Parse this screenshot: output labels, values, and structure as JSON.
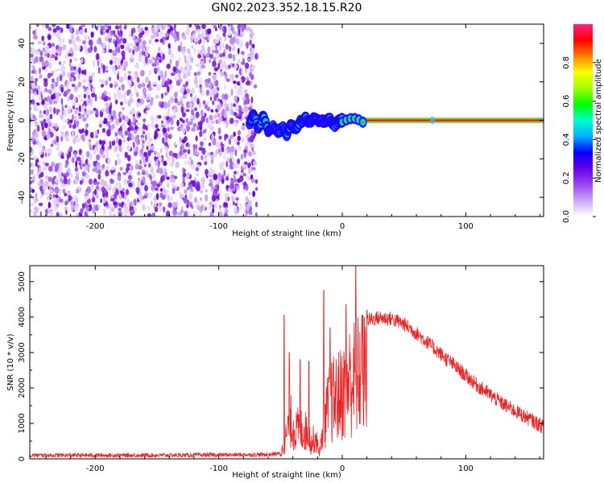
{
  "title": "GN02.2023.352.18.15.R20",
  "chart_data": [
    {
      "type": "heatmap",
      "xlabel": "Height of straight line (km)",
      "ylabel": "Frequency (Hz)",
      "xlim": [
        -253,
        163
      ],
      "ylim": [
        -50,
        50
      ],
      "x_ticks": [
        -200,
        -100,
        0,
        100
      ],
      "y_ticks": [
        -40,
        -20,
        0,
        20,
        40
      ],
      "noise_region_x": [
        -253,
        -72
      ],
      "signal_track": {
        "x": [
          -75,
          -72,
          -68,
          -64,
          -60,
          -56,
          -52,
          -48,
          -45,
          -42,
          -38,
          -34,
          -30,
          -26,
          -22,
          -18,
          -14,
          -10,
          -7,
          -4,
          -2,
          0,
          20,
          60,
          100,
          140,
          163
        ],
        "y": [
          -2,
          3,
          -4,
          2,
          -5,
          -3,
          -6,
          -4,
          -7,
          -3,
          -4,
          -1,
          1,
          -1,
          1,
          -1,
          0,
          1,
          -3,
          -1,
          0,
          0,
          0,
          0,
          0,
          0,
          0
        ]
      },
      "colorbar": {
        "label": "Normalized spectral amplitude",
        "range": [
          0,
          1
        ],
        "ticks": [
          "0.0",
          "0.2",
          "0.4",
          "0.6",
          "0.8"
        ],
        "colors": [
          "#ffffff",
          "#c9a8f5",
          "#9a46f0",
          "#6a00e8",
          "#0000ff",
          "#00b0ff",
          "#00ffd0",
          "#00ff00",
          "#a0ff00",
          "#ffff00",
          "#ff8000",
          "#ff0000",
          "#ff2080"
        ]
      },
      "grid": false
    },
    {
      "type": "line",
      "xlabel": "Height of straight line (km)",
      "ylabel": "SNR (10 * v/v)",
      "xlim": [
        -253,
        163
      ],
      "ylim": [
        0,
        5450
      ],
      "x_ticks": [
        -200,
        -100,
        0,
        100
      ],
      "y_ticks": [
        0,
        1000,
        2000,
        3000,
        4000,
        5000
      ],
      "color": "#ee2222",
      "envelope": {
        "x": [
          -253,
          -200,
          -150,
          -100,
          -60,
          -50,
          -46,
          -42,
          -40,
          -38,
          -35,
          -32,
          -28,
          -25,
          -22,
          -20,
          -18,
          -15,
          -12,
          -9,
          -6,
          -3,
          0,
          3,
          6,
          9,
          12,
          15,
          20,
          25,
          30,
          40,
          50,
          60,
          70,
          80,
          90,
          100,
          110,
          120,
          130,
          140,
          150,
          163
        ],
        "y": [
          100,
          100,
          100,
          110,
          120,
          150,
          900,
          1700,
          1500,
          1200,
          1400,
          1300,
          1200,
          700,
          1000,
          600,
          300,
          1500,
          2200,
          2600,
          2700,
          2800,
          3000,
          3300,
          3500,
          3600,
          3700,
          3800,
          3900,
          3950,
          3980,
          3950,
          3800,
          3550,
          3250,
          2950,
          2650,
          2350,
          2050,
          1800,
          1550,
          1350,
          1150,
          900
        ]
      },
      "spikes": [
        {
          "x": -47,
          "y": 4050
        },
        {
          "x": -43,
          "y": 3000
        },
        {
          "x": -34,
          "y": 2800
        },
        {
          "x": -27,
          "y": 2750
        },
        {
          "x": -15,
          "y": 4750
        },
        {
          "x": -10,
          "y": 3700
        },
        {
          "x": 3,
          "y": 4350
        },
        {
          "x": 11,
          "y": 5450
        },
        {
          "x": 16,
          "y": 4050
        },
        {
          "x": 20,
          "y": 4200
        }
      ],
      "grid": false
    }
  ]
}
